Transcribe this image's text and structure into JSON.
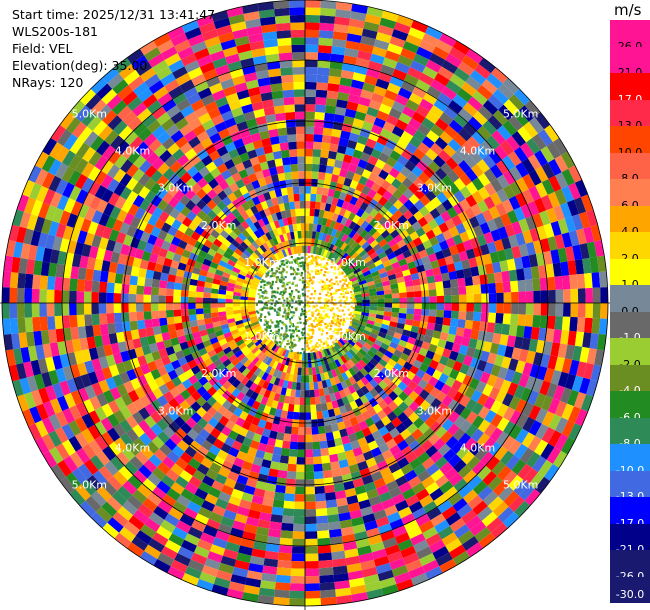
{
  "info": {
    "start_time": "Start time: 2025/12/31 13:41:47",
    "instrument": "WLS200s-181",
    "field": "Field: VEL",
    "elevation": "Elevation(deg): 35.00",
    "nrays": "NRays: 120"
  },
  "colorbar": {
    "unit": "m/s",
    "labels": [
      "26.0",
      "21.0",
      "17.0",
      "13.0",
      "10.0",
      "8.0",
      "6.0",
      "4.0",
      "2.0",
      "1.0",
      "0.0",
      "-1.0",
      "-2.0",
      "-4.0",
      "-6.0",
      "-8.0",
      "-10.0",
      "-13.0",
      "-17.0",
      "-21.0",
      "-26.0",
      "-30.0"
    ],
    "colors": [
      "#ff1493",
      "#ff1493",
      "#ff0000",
      "#ff2a4a",
      "#ff4500",
      "#ff6347",
      "#ff7f50",
      "#ffa500",
      "#ffd700",
      "#ffff00",
      "#778899",
      "#696969",
      "#9acd32",
      "#6b8e23",
      "#228b22",
      "#2e8b57",
      "#1e90ff",
      "#4169e1",
      "#0000ff",
      "#00008b",
      "#191970",
      "#191970"
    ]
  },
  "chart_data": {
    "type": "ppi",
    "title": "",
    "field": "VEL",
    "units": "m/s",
    "elevation_deg": 35.0,
    "nrays": 120,
    "range_ring_labels": [
      "1.0Km",
      "2.0Km",
      "3.0Km",
      "4.0Km",
      "5.0Km"
    ],
    "vmin": -30.0,
    "vmax": 26.0,
    "color_levels": [
      -30.0,
      -26.0,
      -21.0,
      -17.0,
      -13.0,
      -10.0,
      -8.0,
      -6.0,
      -4.0,
      -2.0,
      -1.0,
      0.0,
      1.0,
      2.0,
      4.0,
      6.0,
      8.0,
      10.0,
      13.0,
      17.0,
      21.0,
      26.0
    ]
  }
}
